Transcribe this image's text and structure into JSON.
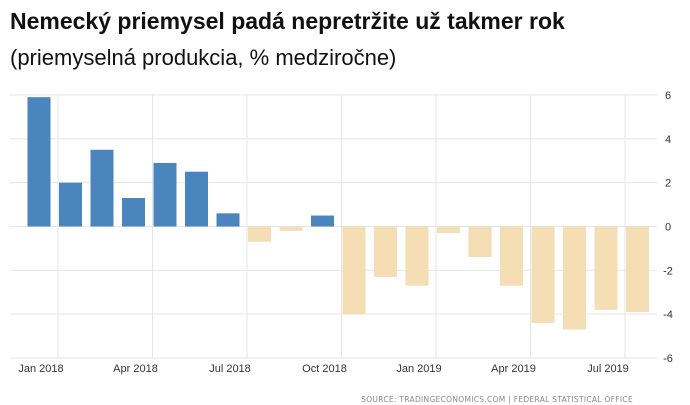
{
  "header": {
    "title": "Nemecký priemysel padá nepretržite už takmer rok",
    "subtitle": "(priemyselná produkcia, % medziročne)"
  },
  "source": "SOURCE: TRADINGECONOMICS.COM | FEDERAL STATISTICAL OFFICE",
  "colors": {
    "positive": "#4a86bd",
    "negative": "#f5deb3",
    "grid": "#e6e6e6",
    "axis_text": "#333333"
  },
  "chart_data": {
    "type": "bar",
    "title": "Nemecký priemysel padá nepretržite už takmer rok",
    "subtitle": "(priemyselná produkcia, % medziročne)",
    "xlabel": "",
    "ylabel": "",
    "ylim": [
      -6,
      6
    ],
    "yticks": [
      6,
      4,
      2,
      0,
      -2,
      -4,
      -6
    ],
    "grid": true,
    "y_axis_side": "right",
    "categories": [
      "Jan 2018",
      "Feb 2018",
      "Mar 2018",
      "Apr 2018",
      "May 2018",
      "Jun 2018",
      "Jul 2018",
      "Aug 2018",
      "Sep 2018",
      "Oct 2018",
      "Nov 2018",
      "Dec 2018",
      "Jan 2019",
      "Feb 2019",
      "Mar 2019",
      "Apr 2019",
      "May 2019",
      "Jun 2019",
      "Jul 2019",
      "Aug 2019"
    ],
    "xtick_labels": [
      {
        "index": 0,
        "label": "Jan 2018"
      },
      {
        "index": 3,
        "label": "Apr 2018"
      },
      {
        "index": 6,
        "label": "Jul 2018"
      },
      {
        "index": 9,
        "label": "Oct 2018"
      },
      {
        "index": 12,
        "label": "Jan 2019"
      },
      {
        "index": 15,
        "label": "Apr 2019"
      },
      {
        "index": 18,
        "label": "Jul 2019"
      }
    ],
    "values": [
      5.9,
      2.0,
      3.5,
      1.3,
      2.9,
      2.5,
      0.6,
      -0.7,
      -0.2,
      0.5,
      -4.0,
      -2.3,
      -2.7,
      -0.3,
      -1.4,
      -2.7,
      -4.4,
      -4.7,
      -3.8,
      -3.9
    ]
  }
}
